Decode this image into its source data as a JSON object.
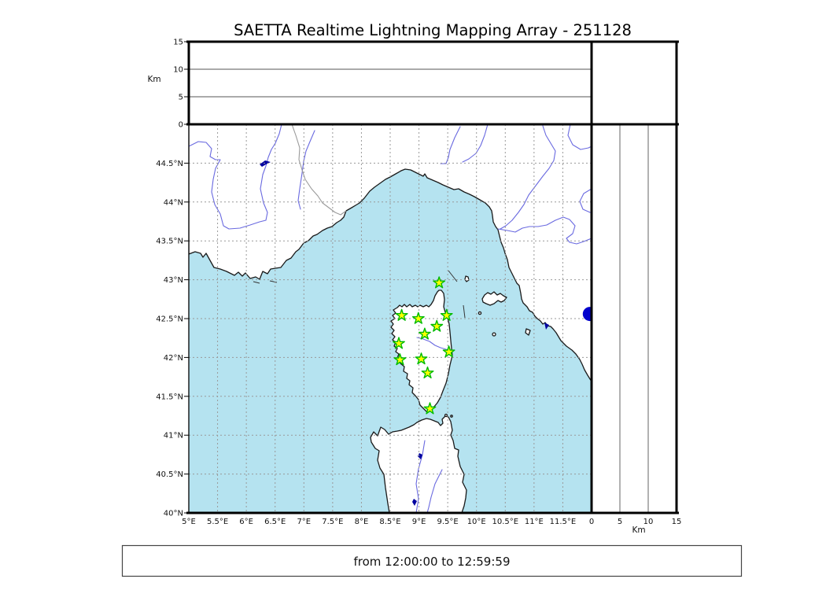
{
  "figure": {
    "title": "SAETTA Realtime Lightning Mapping Array - 251128",
    "time_range": "from 12:00:00 to 12:59:59"
  },
  "chart_data": {
    "type": "map",
    "title": "SAETTA Realtime Lightning Mapping Array - 251128",
    "subtitle": "from 12:00:00 to 12:59:59",
    "map": {
      "lon_range": [
        5,
        12
      ],
      "lat_range": [
        40,
        45
      ],
      "grid": "dashed",
      "grid_step_deg": 0.5,
      "lon_ticks": [
        {
          "v": 5,
          "label": "5°E"
        },
        {
          "v": 5.5,
          "label": "5.5°E"
        },
        {
          "v": 6,
          "label": "6°E"
        },
        {
          "v": 6.5,
          "label": "6.5°E"
        },
        {
          "v": 7,
          "label": "7°E"
        },
        {
          "v": 7.5,
          "label": "7.5°E"
        },
        {
          "v": 8,
          "label": "8°E"
        },
        {
          "v": 8.5,
          "label": "8.5°E"
        },
        {
          "v": 9,
          "label": "9°E"
        },
        {
          "v": 9.5,
          "label": "9.5°E"
        },
        {
          "v": 10,
          "label": "10°E"
        },
        {
          "v": 10.5,
          "label": "10.5°E"
        },
        {
          "v": 11,
          "label": "11°E"
        },
        {
          "v": 11.5,
          "label": "11.5°E"
        }
      ],
      "lat_ticks": [
        {
          "v": 40,
          "label": "40°N"
        },
        {
          "v": 40.5,
          "label": "40.5°N"
        },
        {
          "v": 41,
          "label": "41°N"
        },
        {
          "v": 41.5,
          "label": "41.5°N"
        },
        {
          "v": 42,
          "label": "42°N"
        },
        {
          "v": 42.5,
          "label": "42.5°N"
        },
        {
          "v": 43,
          "label": "43°N"
        },
        {
          "v": 43.5,
          "label": "43.5°N"
        },
        {
          "v": 44,
          "label": "44°N"
        },
        {
          "v": 44.5,
          "label": "44.5°N"
        }
      ]
    },
    "altitude_axis": {
      "label": "Km",
      "range": [
        0,
        15
      ],
      "ticks": [
        {
          "v": 0,
          "label": "0"
        },
        {
          "v": 5,
          "label": "5"
        },
        {
          "v": 10,
          "label": "10"
        },
        {
          "v": 15,
          "label": "15"
        }
      ],
      "gridlines": [
        5,
        10
      ]
    },
    "stations": {
      "marker": "star",
      "fill": "#ffff00",
      "stroke": "#00bb00",
      "points": [
        {
          "lon": 9.35,
          "lat": 42.96
        },
        {
          "lon": 8.7,
          "lat": 42.54
        },
        {
          "lon": 8.99,
          "lat": 42.5
        },
        {
          "lon": 9.48,
          "lat": 42.54
        },
        {
          "lon": 9.31,
          "lat": 42.4
        },
        {
          "lon": 9.1,
          "lat": 42.3
        },
        {
          "lon": 8.65,
          "lat": 42.18
        },
        {
          "lon": 9.52,
          "lat": 42.07
        },
        {
          "lon": 8.67,
          "lat": 41.97
        },
        {
          "lon": 9.04,
          "lat": 41.98
        },
        {
          "lon": 9.15,
          "lat": 41.8
        },
        {
          "lon": 9.19,
          "lat": 41.34
        }
      ]
    },
    "sources": {
      "marker": "circle",
      "color": "#0000cc",
      "points": [
        {
          "lon": 11.97,
          "lat": 42.56
        }
      ]
    },
    "colors": {
      "sea": "#b5e3f0",
      "land": "#ffffff",
      "coast": "#1a1a1a",
      "river": "#6a6ae0",
      "gridline": "#999999",
      "country_border": "#9a9a9a",
      "lake": "#0000a0",
      "frame": "#000000"
    }
  }
}
